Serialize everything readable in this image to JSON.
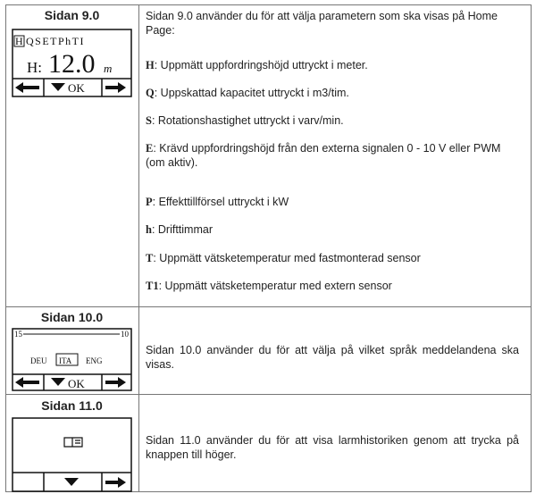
{
  "rows": [
    {
      "page": "Sidan 9.0",
      "lcd": {
        "menu": [
          "H",
          "QSETPhTI"
        ],
        "label": "H:",
        "value": "12.0",
        "unit": "m",
        "ok": "OK"
      },
      "intro": "Sidan 9.0 använder du för att välja parametern som ska visas på Home Page:",
      "items": [
        {
          "key": "H",
          "text": ": Uppmätt uppfordringshöjd uttryckt i meter."
        },
        {
          "key": "Q",
          "text": ": Uppskattad kapacitet uttryckt i m3/tim."
        },
        {
          "key": "S",
          "text": ": Rotationshastighet uttryckt i varv/min."
        },
        {
          "key": "E",
          "text": ": Krävd uppfordringshöjd från den externa signalen 0 - 10 V eller PWM (om aktiv)."
        },
        {
          "key": "P",
          "text": ": Effekttillförsel uttryckt i kW"
        },
        {
          "key": "h",
          "text": ": Drifttimmar"
        },
        {
          "key": "T",
          "text": ": Uppmätt vätsketemperatur med fastmonterad sensor"
        },
        {
          "key": "T1",
          "text": ": Uppmätt vätsketemperatur med extern sensor"
        }
      ]
    },
    {
      "page": "Sidan 10.0",
      "lcd": {
        "left": "15",
        "right": "10",
        "languages": [
          "DEU",
          "ITA",
          "ENG"
        ],
        "ok": "OK"
      },
      "intro": "Sidan 10.0 använder du för att välja på vilket språk meddelandena ska visas."
    },
    {
      "page": "Sidan 11.0",
      "intro": "Sidan 11.0 använder du för att visa larmhistoriken genom att trycka på knappen till höger."
    }
  ]
}
